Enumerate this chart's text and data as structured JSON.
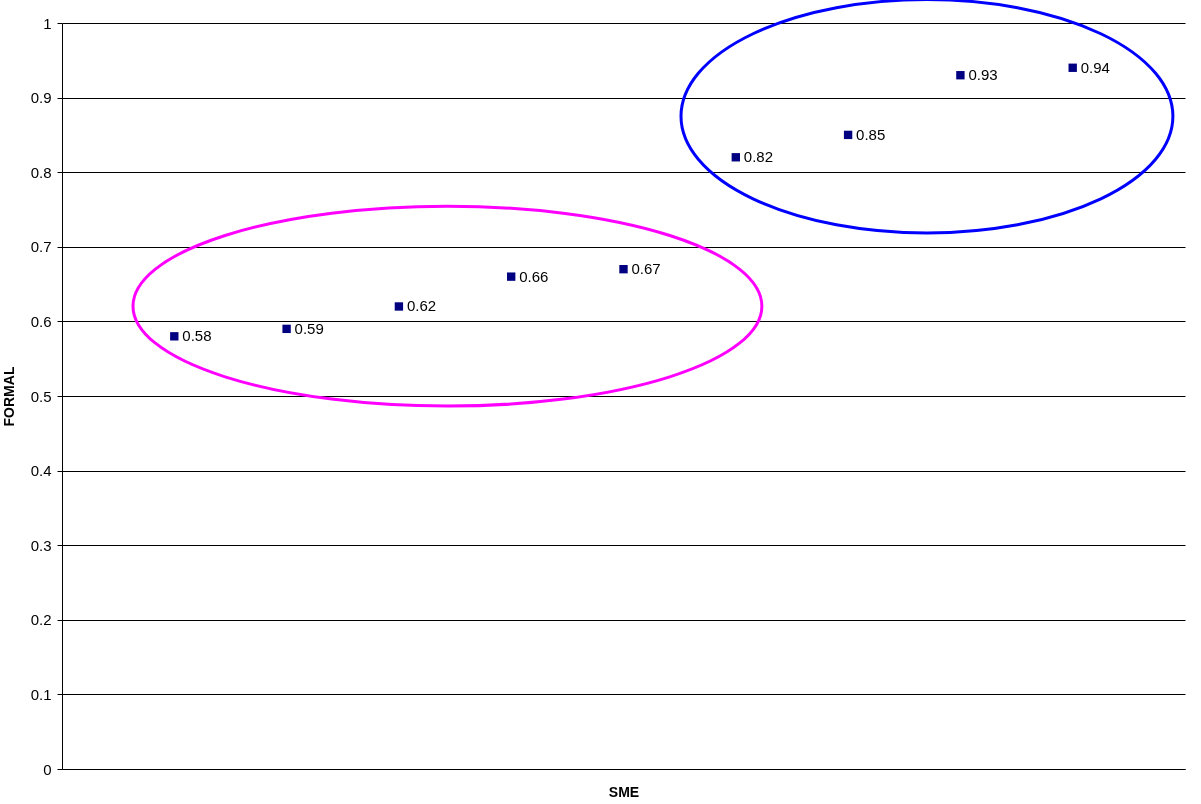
{
  "chart_data": {
    "type": "scatter",
    "xlabel": "SME",
    "ylabel": "FORMAL",
    "categories": [
      null,
      null,
      null,
      null,
      null,
      null,
      null,
      null,
      null
    ],
    "series": [
      {
        "color": "#000080",
        "values": [
          0.58,
          0.59,
          0.62,
          0.66,
          0.67,
          0.82,
          0.85,
          0.93,
          0.94
        ]
      }
    ],
    "ylim": [
      0,
      1
    ],
    "yticks": [
      0,
      0.1,
      0.2,
      0.3,
      0.4,
      0.5,
      0.6,
      0.7,
      0.8,
      0.9,
      1
    ],
    "grid": "y",
    "marker": "square",
    "data_labels": true,
    "tick_labels": "y"
  }
}
